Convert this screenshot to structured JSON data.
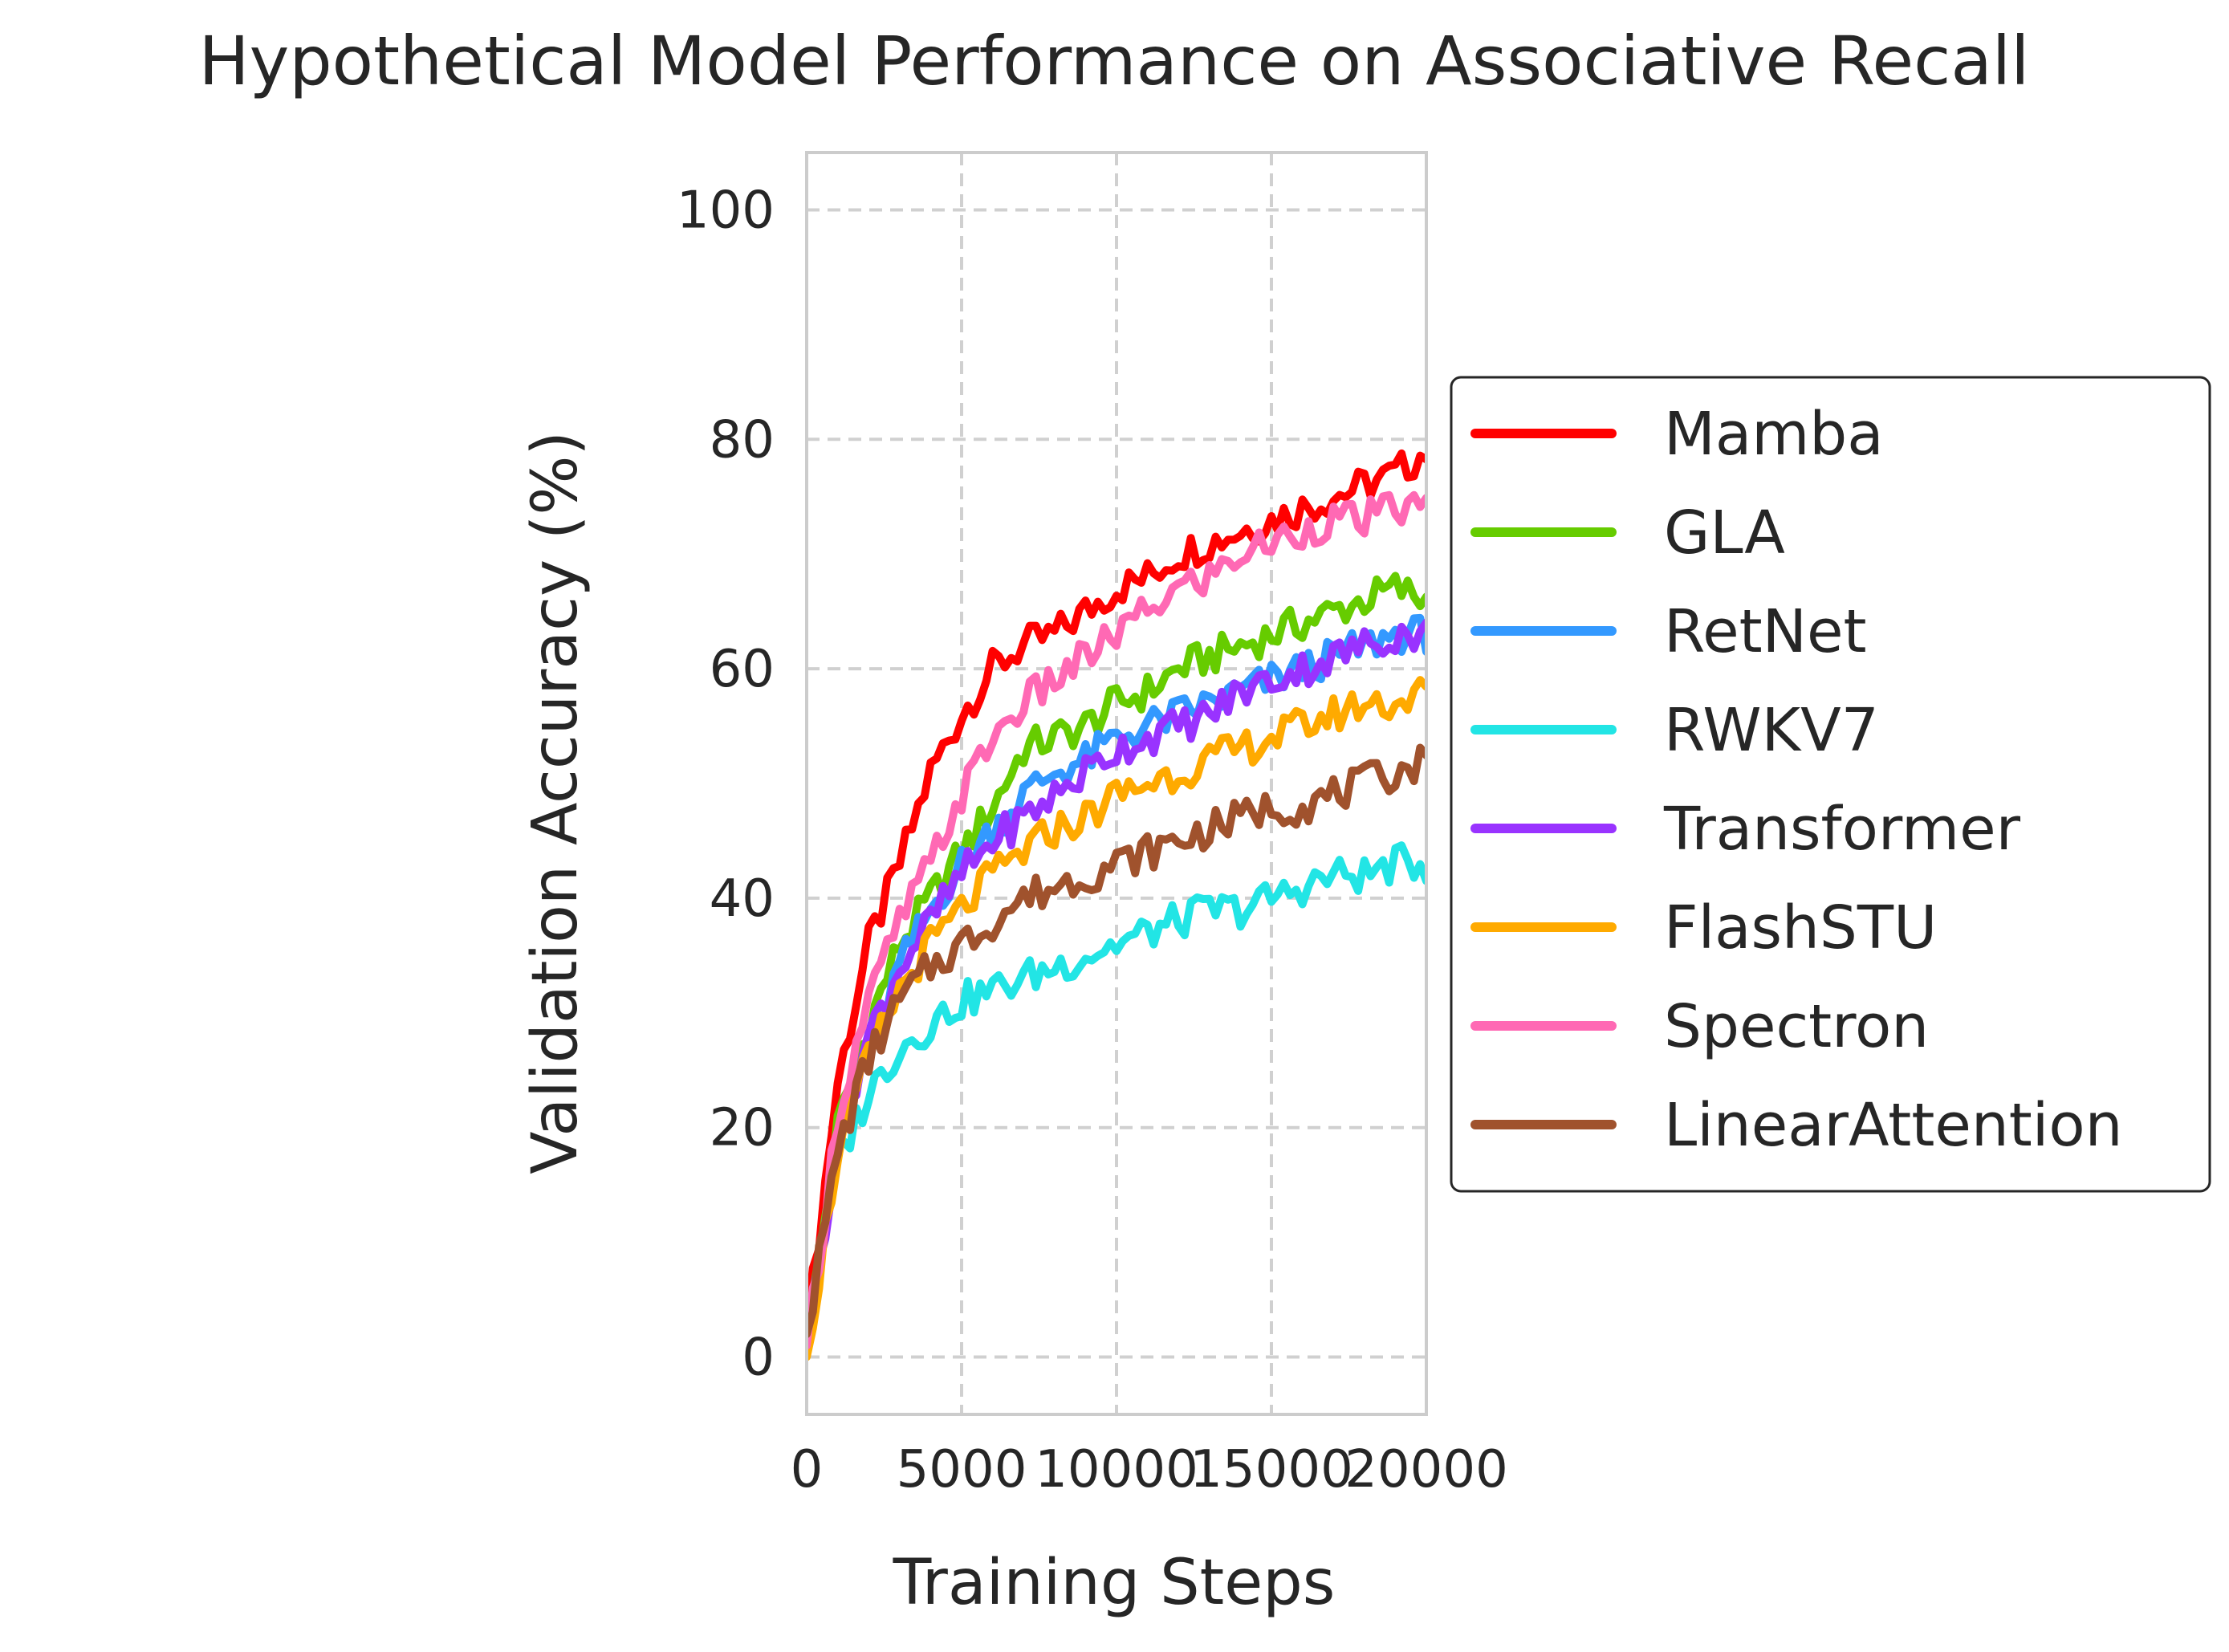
{
  "chart_data": {
    "type": "line",
    "title": "Hypothetical Model Performance on Associative Recall",
    "xlabel": "Training Steps",
    "ylabel": "Validation Accuracy (%)",
    "xlim": [
      0,
      20000
    ],
    "ylim": [
      -5,
      105
    ],
    "xticks": [
      0,
      5000,
      10000,
      15000,
      20000
    ],
    "yticks": [
      0,
      20,
      40,
      60,
      80,
      100
    ],
    "grid": true,
    "grid_style": "dashed",
    "legend_position": "center-right outside",
    "x": [
      0,
      1000,
      2000,
      3000,
      4000,
      5000,
      6000,
      7000,
      8000,
      9000,
      10000,
      11000,
      12000,
      13000,
      14000,
      15000,
      16000,
      17000,
      18000,
      19000,
      20000
    ],
    "series": [
      {
        "name": "Mamba",
        "color": "#ff0000",
        "values": [
          2,
          24,
          36,
          43,
          51,
          56,
          60,
          62,
          63,
          65,
          67,
          68,
          70,
          71,
          72,
          73,
          74,
          75,
          76,
          77,
          79
        ]
      },
      {
        "name": "GLA",
        "color": "#66cc00",
        "values": [
          1,
          20,
          29,
          36,
          40,
          44,
          48,
          53,
          54,
          55,
          57,
          58,
          60,
          61,
          62,
          63,
          64,
          65,
          66,
          67,
          66
        ]
      },
      {
        "name": "RetNet",
        "color": "#3399ff",
        "values": [
          1,
          19,
          27,
          34,
          39,
          43,
          46,
          49,
          51,
          52,
          54,
          55,
          56,
          57,
          58,
          59,
          60,
          61,
          62,
          63,
          63
        ]
      },
      {
        "name": "RWKV7",
        "color": "#22e5e5",
        "values": [
          1,
          17,
          23,
          27,
          29,
          31,
          32,
          33,
          34,
          35,
          36,
          37,
          38,
          39,
          39,
          40,
          41,
          42,
          42,
          43,
          43
        ]
      },
      {
        "name": "Transformer",
        "color": "#9933ff",
        "values": [
          1,
          19,
          28,
          34,
          38,
          42,
          45,
          47,
          49,
          51,
          53,
          54,
          55,
          56,
          58,
          59,
          60,
          61,
          62,
          63,
          63
        ]
      },
      {
        "name": "FlashSTU",
        "color": "#ffaa00",
        "values": [
          0,
          18,
          26,
          32,
          36,
          39,
          42,
          44,
          46,
          47,
          49,
          50,
          51,
          52,
          53,
          54,
          55,
          56,
          57,
          57,
          58
        ]
      },
      {
        "name": "Spectron",
        "color": "#ff69b4",
        "values": [
          1,
          21,
          31,
          38,
          43,
          49,
          54,
          57,
          59,
          61,
          63,
          65,
          67,
          68,
          70,
          71,
          72,
          73,
          73,
          74,
          74
        ]
      },
      {
        "name": "LinearAttention",
        "color": "#a0522d",
        "values": [
          2,
          18,
          26,
          31,
          34,
          36,
          38,
          40,
          41,
          42,
          43,
          44,
          45,
          46,
          47,
          48,
          48,
          49,
          50,
          51,
          52
        ]
      }
    ]
  }
}
